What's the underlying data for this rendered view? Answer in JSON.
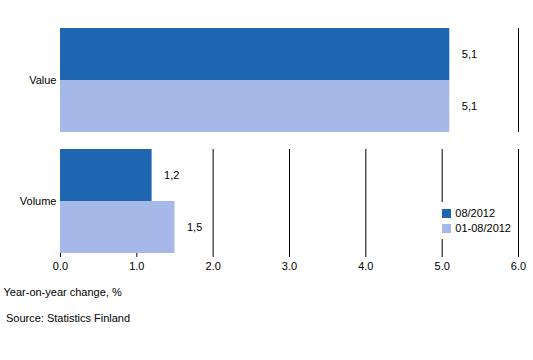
{
  "chart_data": {
    "type": "bar",
    "orientation": "horizontal",
    "categories": [
      "Value",
      "Volume"
    ],
    "series": [
      {
        "name": "08/2012",
        "color": "#1f66b0",
        "values": [
          5.1,
          1.2
        ],
        "value_labels": [
          "5,1",
          "1,2"
        ]
      },
      {
        "name": "01-08/2012",
        "color": "#a6b8e8",
        "values": [
          5.1,
          1.5
        ],
        "value_labels": [
          "5,1",
          "1,5"
        ]
      }
    ],
    "xlabel": "Year-on-year change, %",
    "xlim": [
      0,
      6
    ],
    "xticks": [
      0,
      1,
      2,
      3,
      4,
      5,
      6
    ],
    "grid": true,
    "data_labels": true,
    "legend": "lower right",
    "caption": "Source: Statistics Finland"
  }
}
